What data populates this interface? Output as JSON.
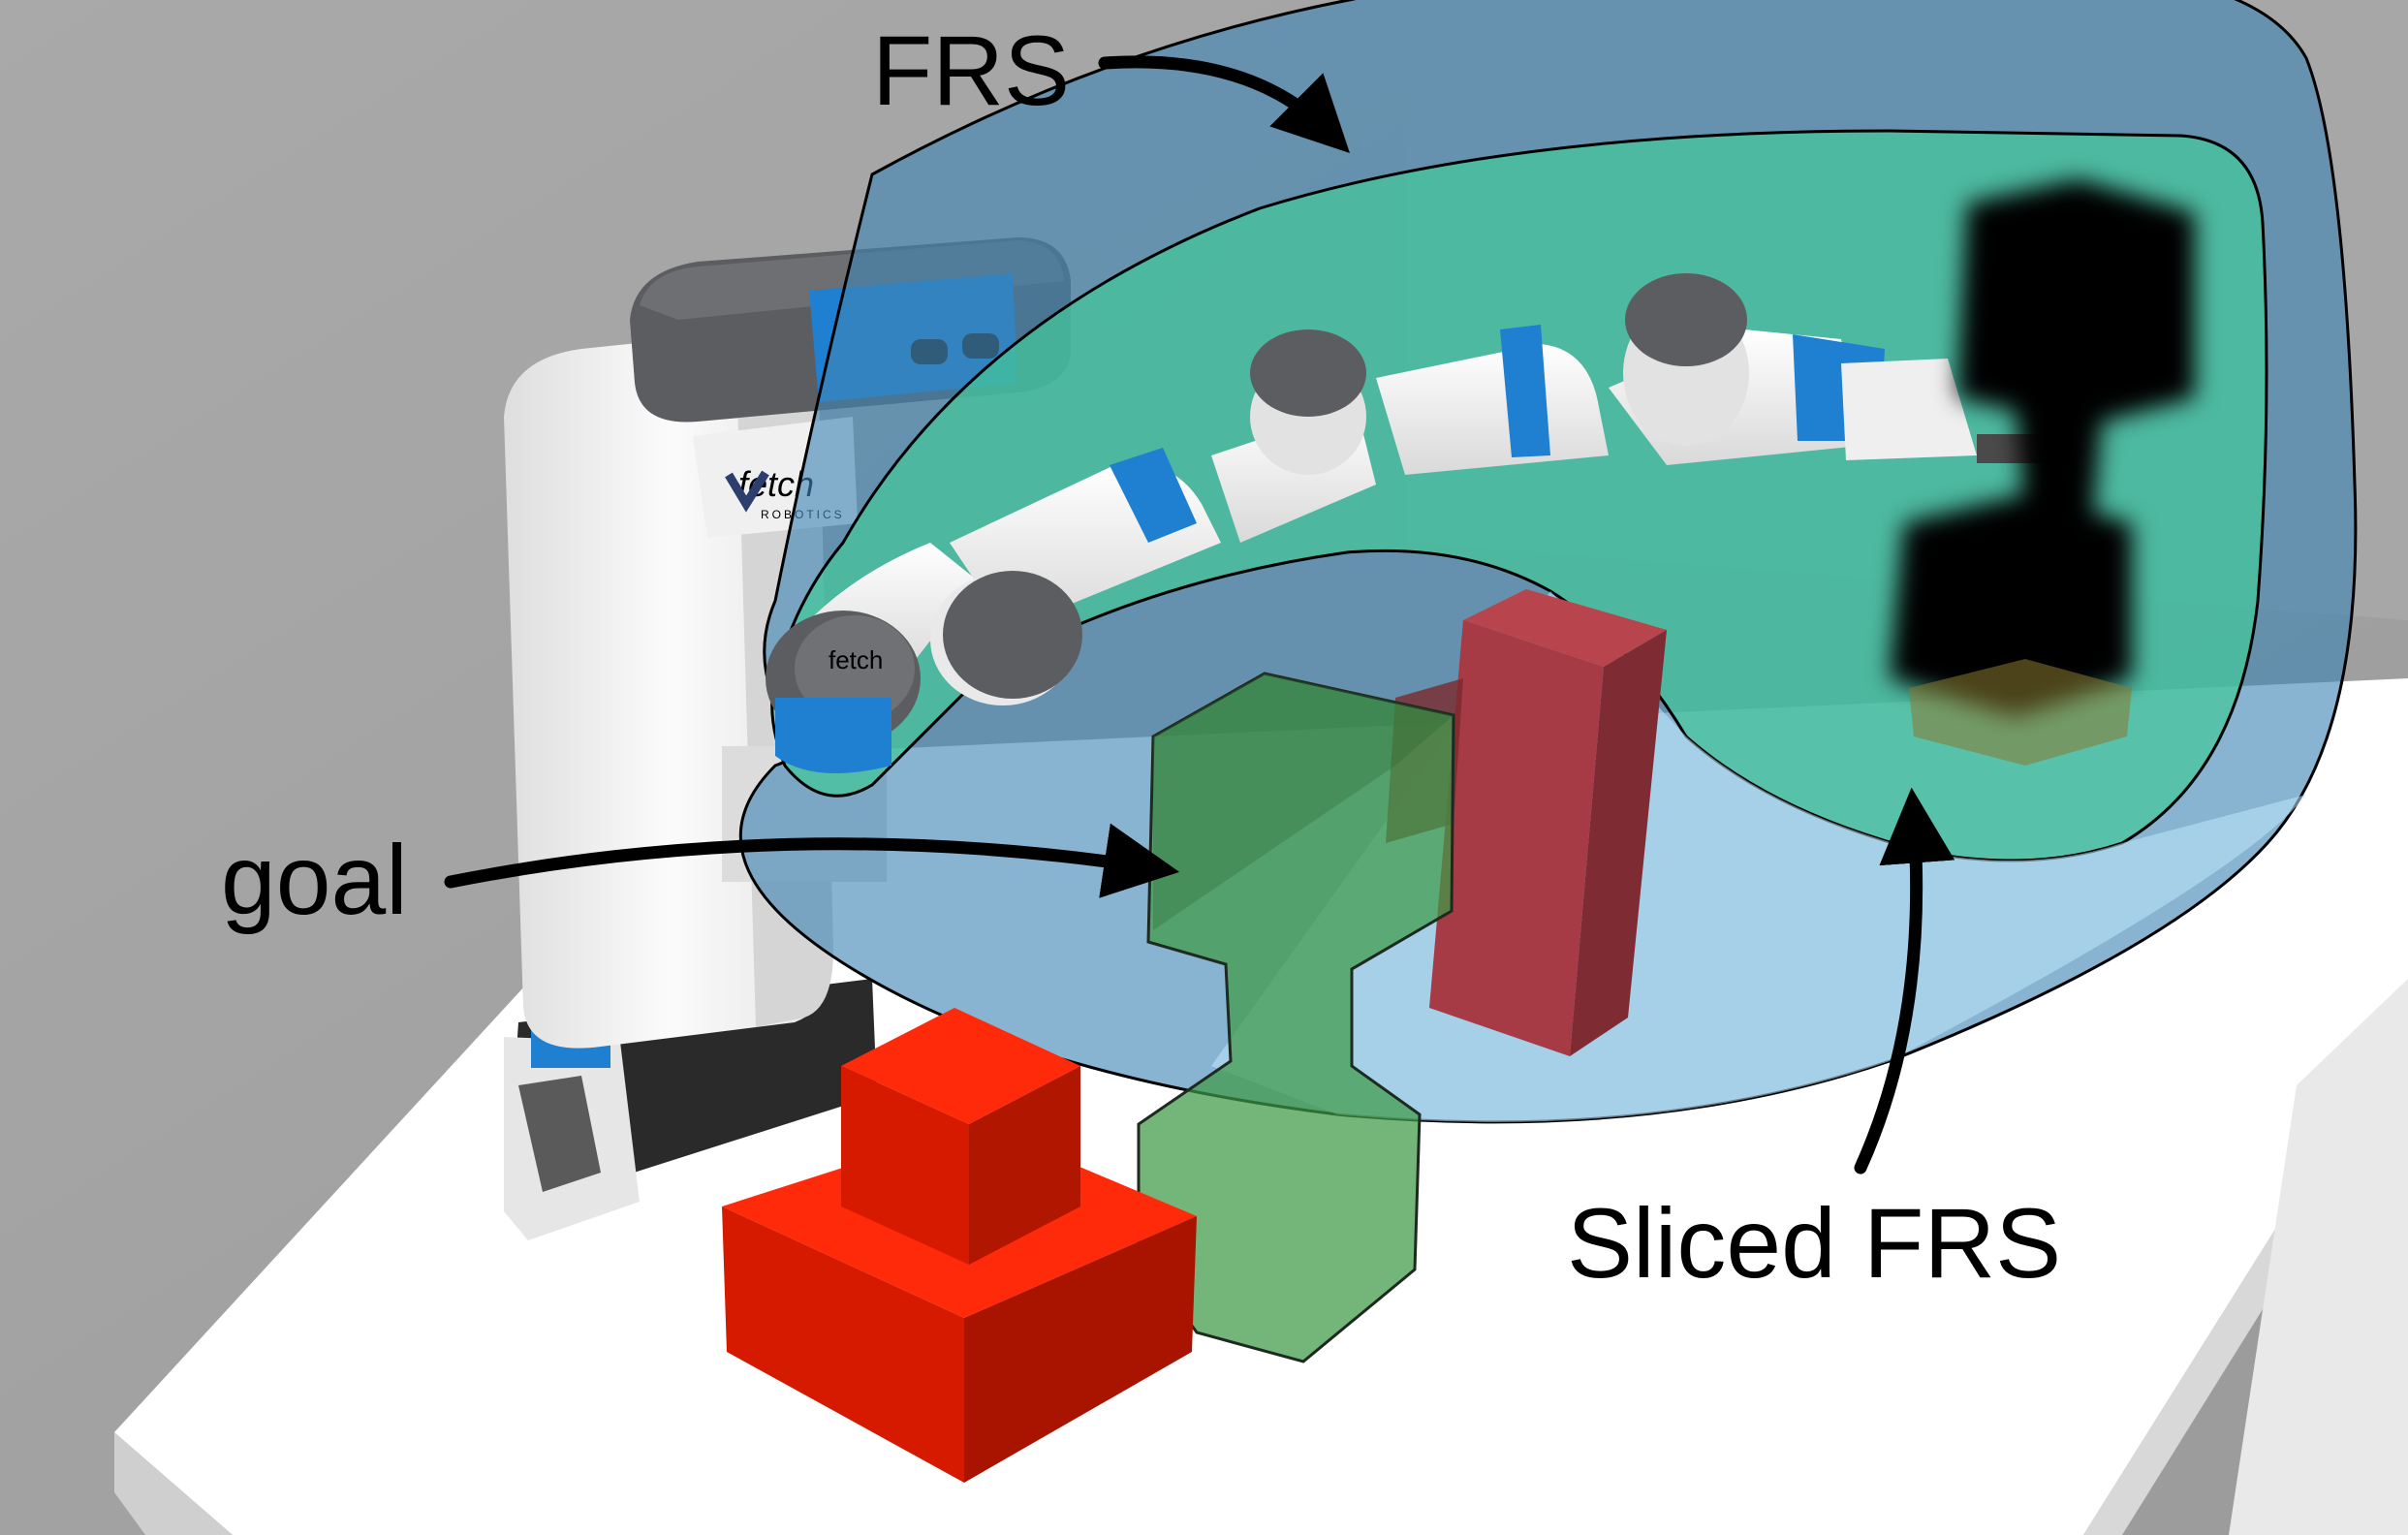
{
  "labels": {
    "frs": "FRS",
    "goal": "goal",
    "sliced_frs": "Sliced FRS",
    "robot_logo": "fetch",
    "robot_logo_sub": "ROBOTICS",
    "link_cap_text": "fetch"
  },
  "colors": {
    "background": "#a3a3a3",
    "table_top": "#ffffff",
    "frs_fill": "#3f86b5",
    "sliced_frs_fill": "#44c89a",
    "goal_fill": "#3f9a46",
    "obstacle_red": "#e01800",
    "obstacle_maroon": "#8c2a35",
    "robot_blue": "#1f7fd1",
    "robot_gray": "#5c5d60",
    "arrow": "#000000"
  },
  "icons": {
    "robot": "fetch-robot-illustration",
    "arm": "robot-arm-illustration"
  }
}
